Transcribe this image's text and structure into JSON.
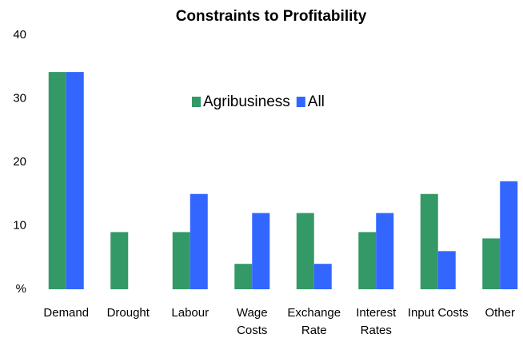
{
  "chart_data": {
    "type": "bar",
    "title": "Constraints to Profitability",
    "categories": [
      "Demand",
      "Drought",
      "Labour",
      "Wage Costs",
      "Exchange Rate",
      "Interest Rates",
      "Input Costs",
      "Other"
    ],
    "series": [
      {
        "name": "Agribusiness",
        "color": "#339966",
        "values": [
          34.2,
          9,
          9,
          4,
          12,
          9,
          15,
          8
        ]
      },
      {
        "name": "All",
        "color": "#3366ff",
        "values": [
          34.2,
          0,
          15,
          12,
          4,
          12,
          6,
          17
        ]
      }
    ],
    "ylim": [
      0,
      40
    ],
    "yticks": [
      {
        "value": 0,
        "label": "%"
      },
      10,
      20,
      30,
      40
    ],
    "grid": false
  }
}
